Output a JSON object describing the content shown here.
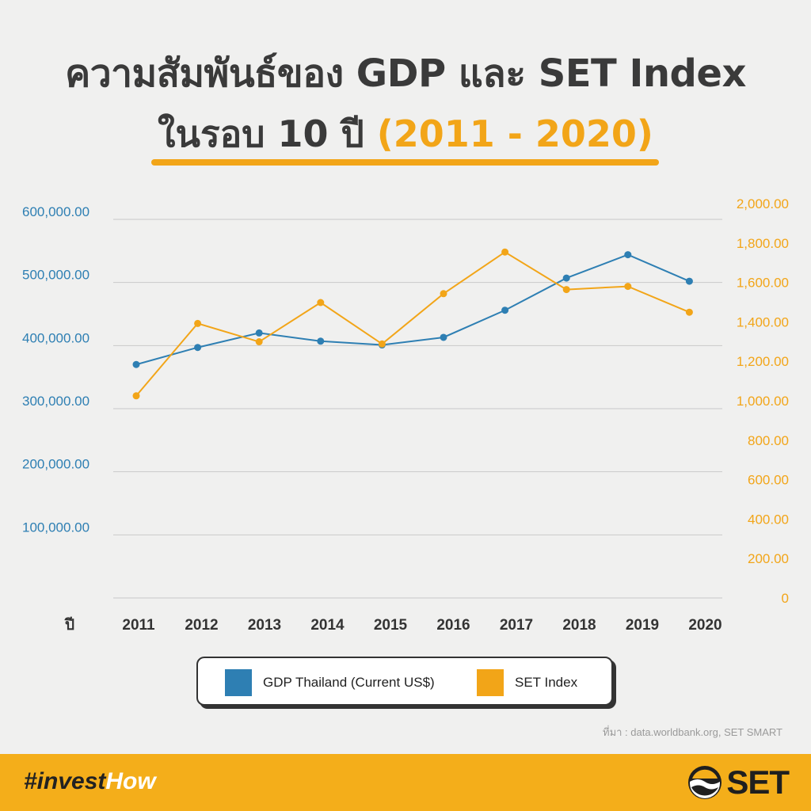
{
  "title": {
    "line1": "ความสัมพันธ์ของ GDP และ SET Index",
    "line2_prefix": "ในรอบ 10 ปี",
    "line2_highlight": "(2011 - 2020)"
  },
  "colors": {
    "gdp": "#2e7fb3",
    "set": "#f2a518",
    "text": "#3a3a3a"
  },
  "chart_data": {
    "type": "line",
    "xlabel": "ปี",
    "categories": [
      "2011",
      "2012",
      "2013",
      "2014",
      "2015",
      "2016",
      "2017",
      "2018",
      "2019",
      "2020"
    ],
    "left_axis": {
      "ylim": [
        0,
        600000
      ],
      "ticks": [
        "100,000.00",
        "200,000.00",
        "300,000.00",
        "400,000.00",
        "500,000.00",
        "600,000.00"
      ]
    },
    "right_axis": {
      "ylim": [
        0,
        2000
      ],
      "ticks": [
        "0",
        "200.00",
        "400.00",
        "600.00",
        "800.00",
        "1,000.00",
        "1,200.00",
        "1,400.00",
        "1,600.00",
        "1,800.00",
        "2,000.00"
      ]
    },
    "grid": true,
    "series": [
      {
        "name": "GDP Thailand (Current US$)",
        "axis": "left",
        "values": [
          370000,
          397000,
          420000,
          407000,
          401000,
          413000,
          456000,
          507000,
          544000,
          502000
        ]
      },
      {
        "name": "SET Index",
        "axis": "right",
        "values": [
          1025,
          1392,
          1299,
          1498,
          1288,
          1543,
          1754,
          1564,
          1580,
          1449
        ]
      }
    ],
    "legend_position": "bottom"
  },
  "source": "ที่มา : data.worldbank.org, SET SMART",
  "footer": {
    "hashtag_main": "#invest",
    "hashtag_light": "How",
    "logo_text": "SET"
  }
}
